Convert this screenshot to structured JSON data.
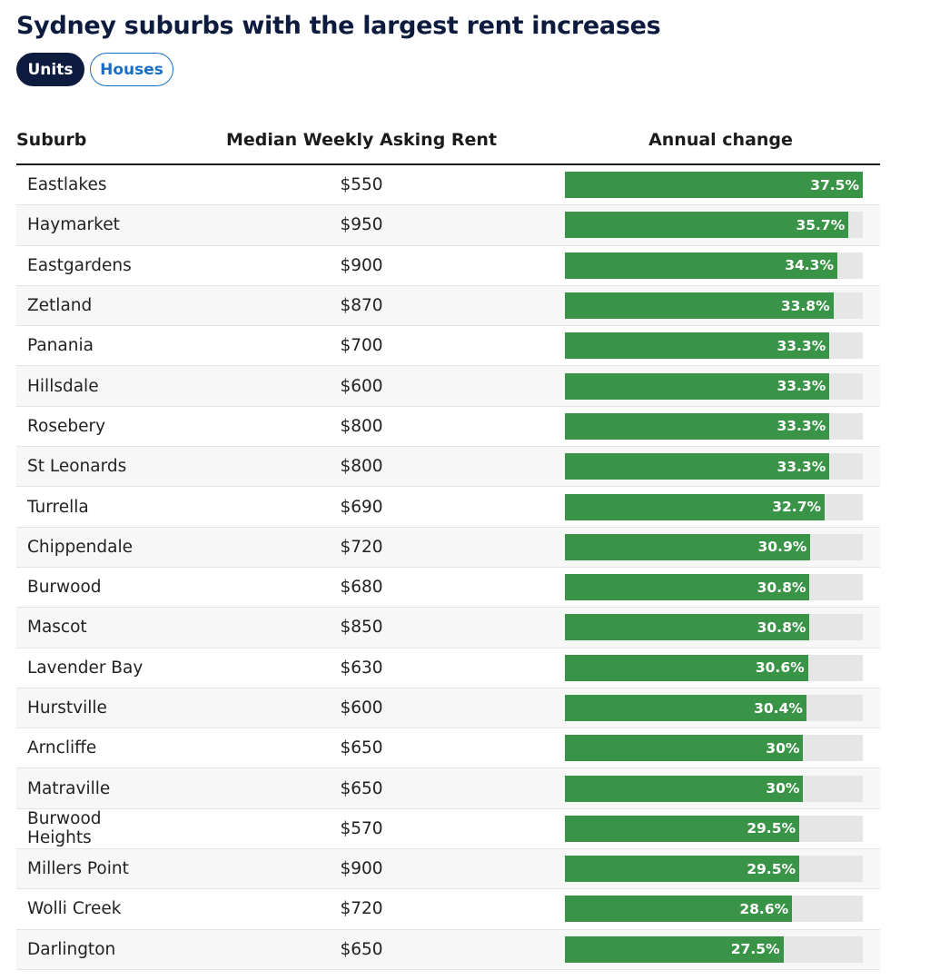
{
  "title": "Sydney suburbs with the largest rent increases",
  "toggle": {
    "units_label": "Units",
    "houses_label": "Houses",
    "selected": "Units"
  },
  "colors": {
    "bar": "#3a9447",
    "track": "#e6e6e6",
    "navy": "#0d1b3e",
    "link": "#1a6fc4"
  },
  "headers": {
    "suburb": "Suburb",
    "rent": "Median Weekly Asking Rent",
    "change": "Annual change"
  },
  "chart_data": {
    "type": "bar",
    "title": "Sydney suburbs with the largest rent increases",
    "xlabel": "Annual change",
    "ylabel": "Suburb",
    "xlim": [
      0,
      37.5
    ],
    "categories": [
      "Eastlakes",
      "Haymarket",
      "Eastgardens",
      "Zetland",
      "Panania",
      "Hillsdale",
      "Rosebery",
      "St Leonards",
      "Turrella",
      "Chippendale",
      "Burwood",
      "Mascot",
      "Lavender Bay",
      "Hurstville",
      "Arncliffe",
      "Matraville",
      "Burwood Heights",
      "Millers Point",
      "Wolli Creek",
      "Darlington"
    ],
    "values": [
      37.5,
      35.7,
      34.3,
      33.8,
      33.3,
      33.3,
      33.3,
      33.3,
      32.7,
      30.9,
      30.8,
      30.8,
      30.6,
      30.4,
      30,
      30,
      29.5,
      29.5,
      28.6,
      27.5
    ]
  },
  "rows": [
    {
      "suburb": "Eastlakes",
      "rent": "$550",
      "change": 37.5,
      "change_label": "37.5%"
    },
    {
      "suburb": "Haymarket",
      "rent": "$950",
      "change": 35.7,
      "change_label": "35.7%"
    },
    {
      "suburb": "Eastgardens",
      "rent": "$900",
      "change": 34.3,
      "change_label": "34.3%"
    },
    {
      "suburb": "Zetland",
      "rent": "$870",
      "change": 33.8,
      "change_label": "33.8%"
    },
    {
      "suburb": "Panania",
      "rent": "$700",
      "change": 33.3,
      "change_label": "33.3%"
    },
    {
      "suburb": "Hillsdale",
      "rent": "$600",
      "change": 33.3,
      "change_label": "33.3%"
    },
    {
      "suburb": "Rosebery",
      "rent": "$800",
      "change": 33.3,
      "change_label": "33.3%"
    },
    {
      "suburb": "St Leonards",
      "rent": "$800",
      "change": 33.3,
      "change_label": "33.3%"
    },
    {
      "suburb": "Turrella",
      "rent": "$690",
      "change": 32.7,
      "change_label": "32.7%"
    },
    {
      "suburb": "Chippendale",
      "rent": "$720",
      "change": 30.9,
      "change_label": "30.9%"
    },
    {
      "suburb": "Burwood",
      "rent": "$680",
      "change": 30.8,
      "change_label": "30.8%"
    },
    {
      "suburb": "Mascot",
      "rent": "$850",
      "change": 30.8,
      "change_label": "30.8%"
    },
    {
      "suburb": "Lavender Bay",
      "rent": "$630",
      "change": 30.6,
      "change_label": "30.6%"
    },
    {
      "suburb": "Hurstville",
      "rent": "$600",
      "change": 30.4,
      "change_label": "30.4%"
    },
    {
      "suburb": "Arncliffe",
      "rent": "$650",
      "change": 30,
      "change_label": "30%"
    },
    {
      "suburb": "Matraville",
      "rent": "$650",
      "change": 30,
      "change_label": "30%"
    },
    {
      "suburb": "Burwood Heights",
      "rent": "$570",
      "change": 29.5,
      "change_label": "29.5%"
    },
    {
      "suburb": "Millers Point",
      "rent": "$900",
      "change": 29.5,
      "change_label": "29.5%"
    },
    {
      "suburb": "Wolli Creek",
      "rent": "$720",
      "change": 28.6,
      "change_label": "28.6%"
    },
    {
      "suburb": "Darlington",
      "rent": "$650",
      "change": 27.5,
      "change_label": "27.5%"
    }
  ]
}
